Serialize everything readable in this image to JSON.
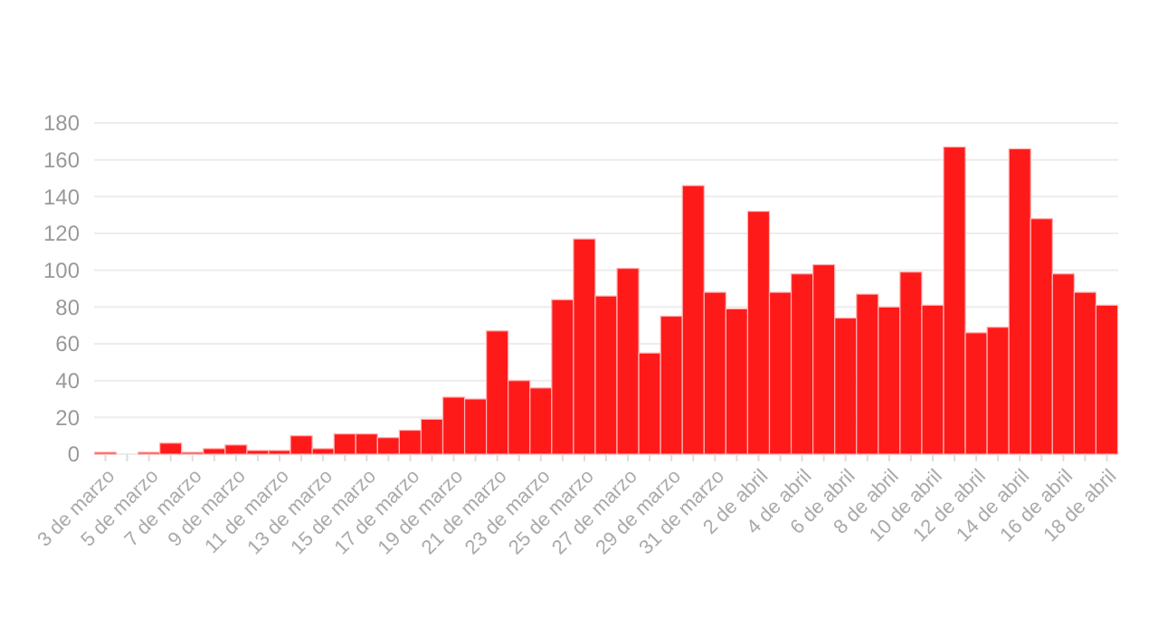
{
  "chart_data": {
    "type": "bar",
    "categories": [
      "3 de marzo",
      null,
      "5 de marzo",
      null,
      "7 de marzo",
      null,
      "9 de marzo",
      null,
      "11 de marzo",
      null,
      "13 de marzo",
      null,
      "15 de marzo",
      null,
      "17 de marzo",
      null,
      "19 de marzo",
      null,
      "21 de marzo",
      null,
      "23 de marzo",
      null,
      "25 de marzo",
      null,
      "27 de marzo",
      null,
      "29 de marzo",
      null,
      "31 de marzo",
      null,
      "2 de abril",
      null,
      "4 de abril",
      null,
      "6 de abril",
      null,
      "8 de abril",
      null,
      "10 de abril",
      null,
      "12 de abril",
      null,
      "14 de abril",
      null,
      "16 de abril",
      null,
      "18 de abril"
    ],
    "values": [
      1,
      0,
      1,
      6,
      1,
      3,
      5,
      2,
      2,
      10,
      3,
      11,
      11,
      9,
      13,
      19,
      31,
      30,
      67,
      40,
      36,
      84,
      117,
      86,
      101,
      55,
      75,
      146,
      88,
      79,
      132,
      88,
      98,
      103,
      74,
      87,
      80,
      99,
      81,
      167,
      66,
      69,
      166,
      128,
      98,
      88,
      81
    ],
    "color": "#ff1a1a",
    "ylim": [
      0,
      180
    ],
    "yticks": [
      0,
      20,
      40,
      60,
      80,
      100,
      120,
      140,
      160,
      180
    ],
    "grid": "y"
  }
}
